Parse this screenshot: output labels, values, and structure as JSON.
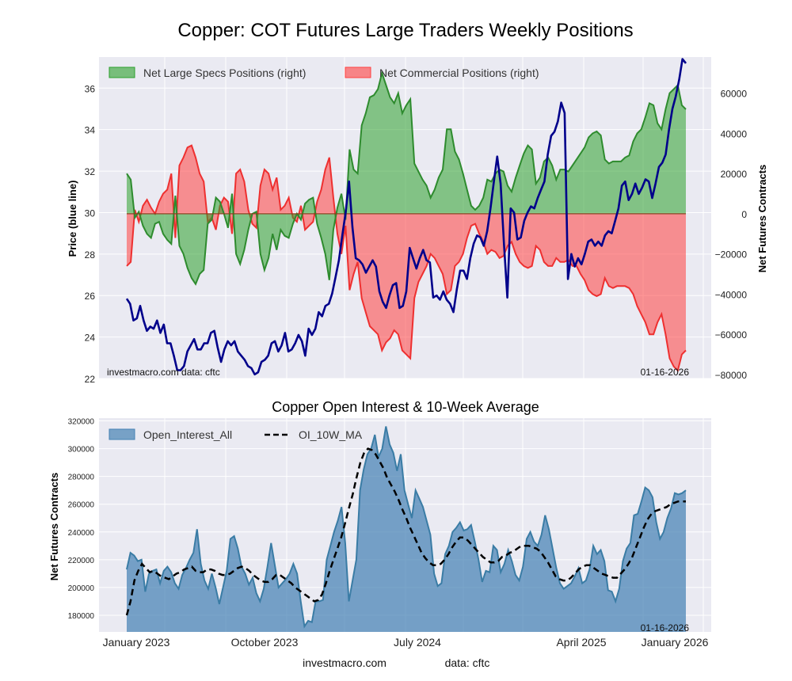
{
  "figure": {
    "title": "Copper: COT Futures Large Traders Weekly Positions",
    "footer_source": "investmacro.com",
    "footer_data": "data: cftc"
  },
  "chart_data": [
    {
      "type": "area",
      "title": "Copper: COT Futures Large Traders Weekly Positions",
      "ylabel_left": "Price (blue line)",
      "ylabel_right": "Net Futures Contracts",
      "ylim_left": [
        22,
        37.5
      ],
      "ylim_right": [
        -82000,
        78000
      ],
      "yticks_left": [
        22,
        24,
        26,
        28,
        30,
        32,
        34,
        36
      ],
      "yticks_right": [
        -80000,
        -60000,
        -40000,
        -20000,
        0,
        20000,
        40000,
        60000
      ],
      "ytick_labels_left": [
        "22",
        "24",
        "26",
        "28",
        "30",
        "32",
        "34",
        "36"
      ],
      "ytick_labels_right": [
        "−80000",
        "−60000",
        "−40000",
        "−20000",
        "0",
        "20000",
        "40000",
        "60000"
      ],
      "grid": true,
      "legend_position": "top-left",
      "annotation_left": "investmacro.com     data: cftc",
      "annotation_right": "01-16-2026",
      "series": [
        {
          "name": "Net Large Specs Positions (right)",
          "axis": "right",
          "color": "#2ca02c",
          "values": [
            20000,
            17000,
            -2000,
            1000,
            -6000,
            -10000,
            -12000,
            -5000,
            -4000,
            -10000,
            -13000,
            -15000,
            9000,
            -16000,
            -20000,
            -27000,
            -32000,
            -35000,
            -30000,
            -28000,
            -5000,
            -3000,
            8000,
            6000,
            0,
            -7000,
            10000,
            -20000,
            -25000,
            -18000,
            -8000,
            0,
            1000,
            -20000,
            -28000,
            -22000,
            -10000,
            -18000,
            -8000,
            -11000,
            -12000,
            -5000,
            0,
            -3000,
            5000,
            7000,
            8000,
            -5000,
            -12000,
            -20000,
            -33000,
            -8000,
            3000,
            10000,
            -3000,
            32000,
            22000,
            20000,
            44000,
            50000,
            58000,
            59000,
            62000,
            70000,
            64000,
            58000,
            55000,
            60000,
            50000,
            54000,
            57000,
            25000,
            21000,
            17000,
            14000,
            8000,
            12000,
            18000,
            22000,
            42000,
            42000,
            31000,
            27000,
            20000,
            12000,
            4000,
            2000,
            4000,
            8000,
            17000,
            16000,
            20000,
            22000,
            21000,
            14000,
            11000,
            18000,
            24000,
            30000,
            34000,
            32000,
            15000,
            18000,
            26000,
            28000,
            24000,
            17000,
            22000,
            22000,
            21000,
            24000,
            27000,
            30000,
            33000,
            38000,
            40000,
            41000,
            39000,
            27000,
            25000,
            26000,
            26000,
            26000,
            28000,
            29000,
            36000,
            40000,
            42000,
            48000,
            55000,
            54000,
            45000,
            42000,
            52000,
            60000,
            62000,
            64000,
            54000,
            52000
          ]
        },
        {
          "name": "Net Commercial Positions (right)",
          "axis": "right",
          "color": "#ff4040",
          "values": [
            -26000,
            -24000,
            2000,
            -4000,
            4000,
            7000,
            3000,
            0,
            6000,
            10000,
            12000,
            20000,
            -12000,
            24000,
            28000,
            33000,
            34000,
            28000,
            20000,
            16000,
            -4000,
            -2000,
            -8000,
            4000,
            8000,
            6000,
            -10000,
            20000,
            22000,
            16000,
            2000,
            -5000,
            -7000,
            14000,
            22000,
            20000,
            12000,
            18000,
            2000,
            4000,
            8000,
            -2000,
            -4000,
            4000,
            -8000,
            -6000,
            -4000,
            6000,
            12000,
            22000,
            28000,
            8000,
            -10000,
            -20000,
            -6000,
            -38000,
            -30000,
            -24000,
            -42000,
            -49000,
            -56000,
            -58000,
            -60000,
            -68000,
            -64000,
            -62000,
            -58000,
            -60000,
            -68000,
            -70000,
            -72000,
            -42000,
            -34000,
            -30000,
            -26000,
            -20000,
            -22000,
            -26000,
            -30000,
            -40000,
            -38000,
            -26000,
            -24000,
            -20000,
            -12000,
            -6000,
            -5000,
            -10000,
            -14000,
            -20000,
            -18000,
            -19000,
            -22000,
            -21000,
            -16000,
            -14000,
            -20000,
            -24000,
            -26000,
            -27000,
            -26000,
            -16000,
            -18000,
            -24000,
            -26000,
            -26000,
            -22000,
            -24000,
            -24000,
            -23000,
            -26000,
            -26000,
            -30000,
            -33000,
            -38000,
            -40000,
            -41000,
            -40000,
            -32000,
            -36000,
            -37000,
            -36000,
            -36000,
            -36000,
            -37000,
            -40000,
            -46000,
            -50000,
            -54000,
            -60000,
            -60000,
            -54000,
            -50000,
            -60000,
            -72000,
            -76000,
            -78000,
            -70000,
            -68000
          ]
        },
        {
          "name": "Price",
          "axis": "left",
          "color": "#00008b",
          "values": [
            25.85,
            25.6,
            24.8,
            24.9,
            25.5,
            24.8,
            24.3,
            24.5,
            24.4,
            24.8,
            24.2,
            24.6,
            23.7,
            23.7,
            23.1,
            22.4,
            22.4,
            22.6,
            23.3,
            23.6,
            23.9,
            23.4,
            23.4,
            23.7,
            23.7,
            24.2,
            24.3,
            23.5,
            22.8,
            23.4,
            23.8,
            23.6,
            23.8,
            23.3,
            23.1,
            22.9,
            22.6,
            22.5,
            22.2,
            22.3,
            22.8,
            22.9,
            23.1,
            23.7,
            23.8,
            23.3,
            23.6,
            24.2,
            23.3,
            23.4,
            23.7,
            24.1,
            23.8,
            23.1,
            24.4,
            24.1,
            24.4,
            25.2,
            25.0,
            25.5,
            25.6,
            26.1,
            26.9,
            27.7,
            28.9,
            30.0,
            31.5,
            29.3,
            27.8,
            27.7,
            27.5,
            27.1,
            27.4,
            27.7,
            27.4,
            26.2,
            25.7,
            25.4,
            26.0,
            26.5,
            26.6,
            25.4,
            25.5,
            26.2,
            28.3,
            27.8,
            27.3,
            27.8,
            28.2,
            27.7,
            27.6,
            25.9,
            26.0,
            25.8,
            26.2,
            25.8,
            25.6,
            25.2,
            26.3,
            27.2,
            27.2,
            26.8,
            27.8,
            28.5,
            28.9,
            28.8,
            28.4,
            29.1,
            30.2,
            31.5,
            32.7,
            31.4,
            28.5,
            25.9,
            30.2,
            30.0,
            28.7,
            28.8,
            29.6,
            30.0,
            30.3,
            30.2,
            30.7,
            31.1,
            31.5,
            32.8,
            33.7,
            33.9,
            34.4,
            35.3,
            34.8,
            26.8,
            28.0,
            27.4,
            27.8,
            27.5,
            28.0,
            28.6,
            28.7,
            28.4,
            28.6,
            28.4,
            28.9,
            29.1,
            29.0,
            29.6,
            30.2,
            31.3,
            31.5,
            30.6,
            30.9,
            31.4,
            30.9,
            31.2,
            31.6,
            31.5,
            30.7,
            31.4,
            32.2,
            32.4,
            32.8,
            34.0,
            35.0,
            35.6,
            36.4,
            37.4,
            37.2
          ]
        }
      ]
    },
    {
      "type": "area",
      "title": "Copper Open Interest & 10-Week Average",
      "ylabel": "Net Futures Contracts",
      "ylim": [
        168000,
        322000
      ],
      "yticks": [
        180000,
        200000,
        220000,
        240000,
        260000,
        280000,
        300000,
        320000
      ],
      "xtick_labels": [
        "January 2023",
        "October 2023",
        "July 2024",
        "April 2025",
        "January 2026"
      ],
      "grid": true,
      "legend_position": "top-left",
      "annotation_right": "01-16-2026",
      "series": [
        {
          "name": "Open_Interest_All",
          "color": "#4682b4",
          "values": [
            213000,
            225000,
            223000,
            219000,
            220000,
            197000,
            210000,
            212000,
            213000,
            203000,
            212000,
            215000,
            211000,
            203000,
            199000,
            209000,
            214000,
            220000,
            225000,
            242000,
            217000,
            205000,
            199000,
            210000,
            200000,
            188000,
            200000,
            212000,
            235000,
            237000,
            228000,
            215000,
            210000,
            202000,
            207000,
            196000,
            190000,
            199000,
            215000,
            232000,
            216000,
            200000,
            203000,
            206000,
            210000,
            217000,
            210000,
            190000,
            172000,
            176000,
            175000,
            190000,
            190000,
            191000,
            220000,
            230000,
            240000,
            248000,
            258000,
            232000,
            190000,
            205000,
            220000,
            270000,
            285000,
            296000,
            300000,
            310000,
            294000,
            300000,
            316000,
            303000,
            297000,
            284000,
            296000,
            270000,
            260000,
            250000,
            270000,
            264000,
            258000,
            248000,
            238000,
            210000,
            201000,
            203000,
            224000,
            230000,
            240000,
            243000,
            247000,
            241000,
            242000,
            245000,
            233000,
            220000,
            204000,
            212000,
            211000,
            230000,
            227000,
            211000,
            217000,
            227000,
            219000,
            209000,
            205000,
            215000,
            235000,
            240000,
            233000,
            230000,
            238000,
            252000,
            242000,
            228000,
            214000,
            203000,
            199000,
            201000,
            203000,
            208000,
            214000,
            203000,
            205000,
            213000,
            230000,
            224000,
            227000,
            219000,
            198000,
            197000,
            190000,
            199000,
            219000,
            228000,
            232000,
            252000,
            253000,
            262000,
            272000,
            270000,
            265000,
            247000,
            235000,
            240000,
            250000,
            257000,
            268000,
            267000,
            268000,
            270000
          ]
        },
        {
          "name": "OI_10W_MA",
          "color": "#000000",
          "values": [
            180000,
            190000,
            205000,
            212000,
            217000,
            214000,
            211000,
            212000,
            210000,
            208000,
            207000,
            206000,
            208000,
            210000,
            211000,
            213000,
            214000,
            215000,
            212000,
            211000,
            211000,
            213000,
            213000,
            212000,
            210000,
            209000,
            209000,
            210000,
            212000,
            214000,
            215000,
            214000,
            212000,
            209000,
            207000,
            205000,
            204000,
            204000,
            206000,
            209000,
            209000,
            207000,
            205000,
            203000,
            200000,
            198000,
            196000,
            194000,
            192000,
            190000,
            191000,
            195000,
            203000,
            212000,
            220000,
            228000,
            236000,
            246000,
            257000,
            267000,
            279000,
            290000,
            297000,
            300000,
            299000,
            296000,
            291000,
            286000,
            279000,
            274000,
            269000,
            263000,
            256000,
            250000,
            243000,
            237000,
            231000,
            225000,
            221000,
            218000,
            216000,
            216000,
            217000,
            220000,
            224000,
            229000,
            233000,
            236000,
            236000,
            234000,
            231000,
            228000,
            225000,
            222000,
            220000,
            218000,
            218000,
            219000,
            222000,
            223000,
            225000,
            226000,
            228000,
            230000,
            230000,
            230000,
            229000,
            228000,
            226000,
            222000,
            218000,
            213000,
            208000,
            206000,
            205000,
            205000,
            207000,
            210000,
            213000,
            215000,
            216000,
            216000,
            214000,
            212000,
            210000,
            209000,
            208000,
            207000,
            207000,
            210000,
            213000,
            217000,
            222000,
            229000,
            236000,
            243000,
            249000,
            253000,
            255000,
            256000,
            257000,
            258000,
            260000,
            261000,
            262000,
            262000,
            262000
          ]
        }
      ]
    }
  ]
}
